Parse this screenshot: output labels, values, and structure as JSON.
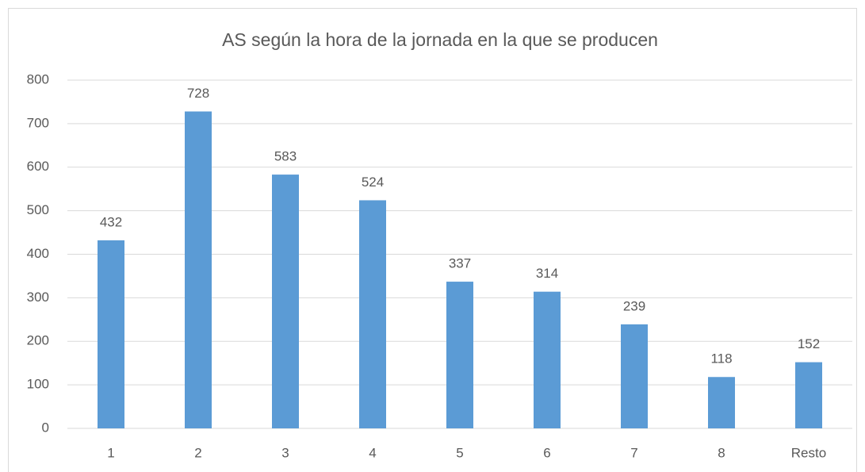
{
  "chart_data": {
    "type": "bar",
    "title": "AS según la hora de la jornada en la que se producen",
    "categories": [
      "1",
      "2",
      "3",
      "4",
      "5",
      "6",
      "7",
      "8",
      "Resto"
    ],
    "values": [
      432,
      728,
      583,
      524,
      337,
      314,
      239,
      118,
      152
    ],
    "color": "#5b9bd5",
    "ylim": [
      0,
      800
    ],
    "yticks": [
      0,
      100,
      200,
      300,
      400,
      500,
      600,
      700,
      800
    ],
    "grid": true
  }
}
